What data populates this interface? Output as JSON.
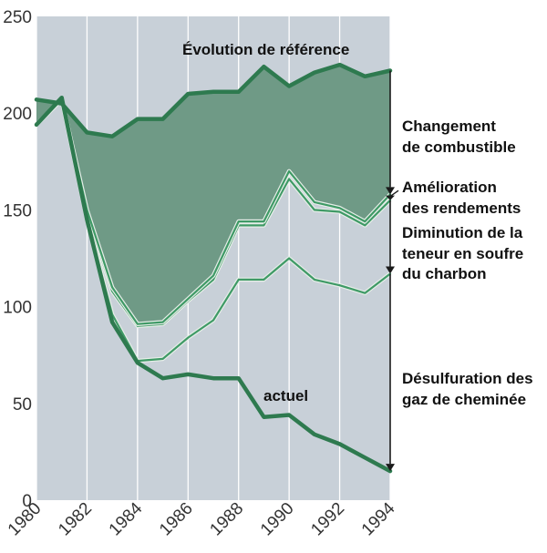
{
  "chart_data": {
    "type": "line",
    "title": "",
    "xlabel": "",
    "ylabel": "",
    "x": [
      1980,
      1981,
      1982,
      1983,
      1984,
      1985,
      1986,
      1987,
      1988,
      1989,
      1990,
      1991,
      1992,
      1993,
      1994
    ],
    "xlim": [
      1980,
      1994
    ],
    "ylim": [
      0,
      250
    ],
    "x_ticks": [
      1980,
      1982,
      1984,
      1986,
      1988,
      1990,
      1992,
      1994
    ],
    "y_ticks": [
      0,
      50,
      100,
      150,
      200,
      250
    ],
    "grid": "vertical",
    "series": [
      {
        "name": "Évolution de référence",
        "values": [
          207,
          205,
          190,
          188,
          197,
          197,
          210,
          211,
          211,
          224,
          214,
          221,
          225,
          219,
          222
        ]
      },
      {
        "name": "",
        "values": [
          194,
          207,
          150,
          110,
          91,
          92,
          104,
          116,
          144,
          144,
          170,
          154,
          151,
          144,
          158
        ]
      },
      {
        "name": "",
        "values": [
          194,
          207,
          148,
          108,
          90,
          91,
          103,
          114,
          142,
          142,
          166,
          150,
          149,
          142,
          155
        ]
      },
      {
        "name": "",
        "values": [
          194,
          207,
          145,
          96,
          72,
          73,
          84,
          93,
          114,
          114,
          125,
          114,
          111,
          107,
          117
        ]
      },
      {
        "name": "actuel",
        "values": [
          194,
          208,
          145,
          92,
          71,
          63,
          65,
          63,
          63,
          43,
          44,
          34,
          29,
          22,
          15
        ]
      }
    ],
    "annotations": [
      {
        "text": "Évolution de référence"
      },
      {
        "text": "actuel"
      },
      {
        "text": "Changement de combustible",
        "lines": [
          "Changement",
          "de combustible"
        ]
      },
      {
        "text": "Amélioration des rendements",
        "lines": [
          "Amélioration",
          "des rendements"
        ]
      },
      {
        "text": "Diminution de la teneur en soufre du charbon",
        "lines": [
          "Diminution de la",
          "teneur en soufre",
          "du charbon"
        ]
      },
      {
        "text": "Désulfuration des gaz de cheminée",
        "lines": [
          "Désulfuration des",
          "gaz de cheminée"
        ]
      }
    ],
    "brackets": [
      {
        "from": 222,
        "to": 158
      },
      {
        "from": 158,
        "to": 155
      },
      {
        "from": 155,
        "to": 117
      },
      {
        "from": 117,
        "to": 15
      }
    ],
    "colors": {
      "plot_background": "#c8d0d8",
      "grid": "#ffffff",
      "shaded_area": "#6f9a86",
      "thick_line": "#2e7a4f",
      "thin_line": "#3f9a66",
      "thin_line_outline": "#e6eee8",
      "bracket": "#1a1a1a"
    }
  }
}
